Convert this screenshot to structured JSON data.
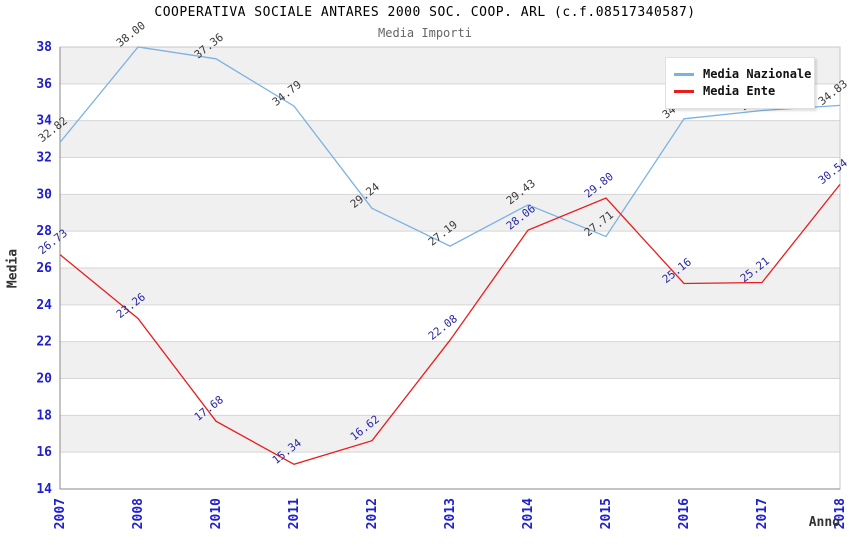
{
  "chart_data": {
    "type": "line",
    "title": "COOPERATIVA SOCIALE ANTARES 2000 SOC. COOP. ARL (c.f.08517340587)",
    "subtitle": "Media Importi",
    "xlabel": "Anno",
    "ylabel": "Media",
    "categories": [
      "2007",
      "2008",
      "2010",
      "2011",
      "2012",
      "2013",
      "2014",
      "2015",
      "2016",
      "2017",
      "2018"
    ],
    "ylim": [
      14,
      38
    ],
    "ytick_step": 2,
    "grid": true,
    "band_fill": true,
    "legend_position": "top-right",
    "series": [
      {
        "name": "Media Nazionale",
        "color": "#7cb2e2",
        "label_color": "#3a3a3a",
        "values": [
          32.82,
          38.0,
          37.36,
          34.79,
          29.24,
          27.19,
          29.43,
          27.71,
          34.1,
          34.55,
          34.83
        ]
      },
      {
        "name": "Media Ente",
        "color": "#ea1c1c",
        "label_color": "#2929a3",
        "values": [
          26.73,
          23.26,
          17.68,
          15.34,
          16.62,
          22.08,
          28.06,
          29.8,
          25.16,
          25.21,
          30.54
        ]
      }
    ],
    "colors": {
      "tick_label": "#2020cc",
      "grid_band": "#f0f0f0",
      "grid_line": "#d6d6d6",
      "spine": "#8a8a8a",
      "border": "#c8c8c8",
      "title": "#000000",
      "subtitle": "#666666",
      "axis_title": "#333333",
      "background": "#ffffff"
    }
  }
}
